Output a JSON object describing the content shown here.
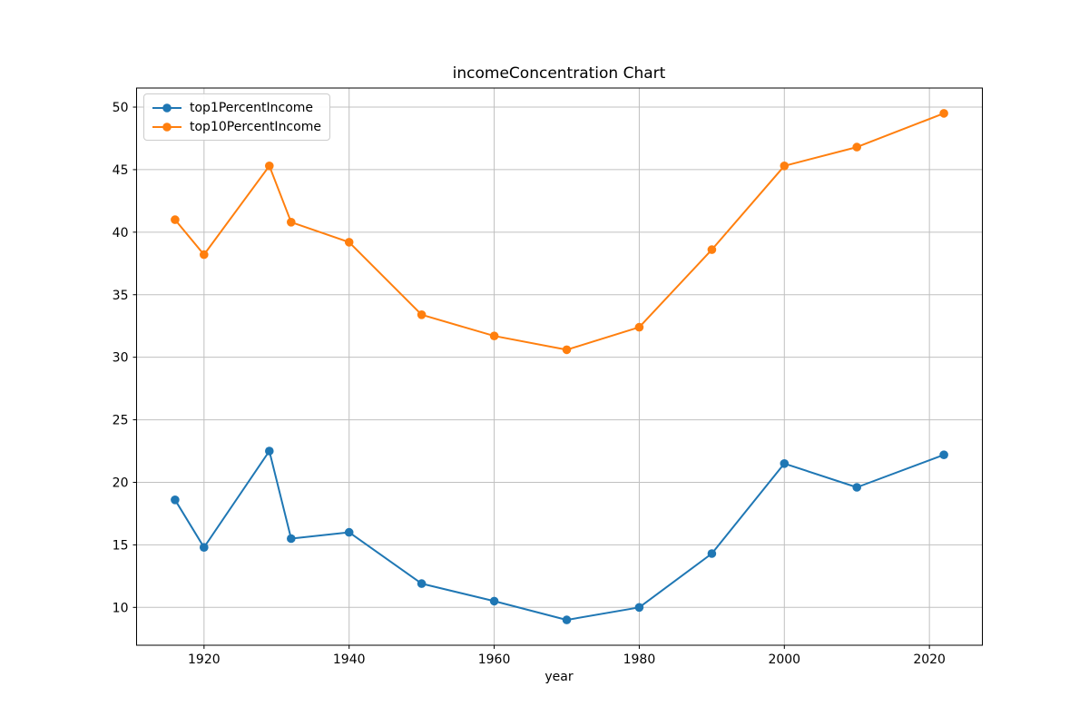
{
  "figure": {
    "title": "incomeConcentration Chart",
    "xlabel": "year",
    "background": "#ffffff"
  },
  "legend": {
    "position": "upper left",
    "items": [
      {
        "label": "top1PercentIncome",
        "color": "#1f77b4",
        "marker": "circle-icon"
      },
      {
        "label": "top10PercentIncome",
        "color": "#ff7f0e",
        "marker": "circle-icon"
      }
    ]
  },
  "chart_data": {
    "type": "line",
    "title": "incomeConcentration Chart",
    "xlabel": "year",
    "ylabel": "",
    "x": [
      1916,
      1920,
      1929,
      1932,
      1940,
      1950,
      1960,
      1970,
      1980,
      1990,
      2000,
      2010,
      2022
    ],
    "series": [
      {
        "name": "top1PercentIncome",
        "color": "#1f77b4",
        "values": [
          18.6,
          14.8,
          22.5,
          15.5,
          16.0,
          11.9,
          10.5,
          9.0,
          10.0,
          14.3,
          21.5,
          19.6,
          22.2
        ]
      },
      {
        "name": "top10PercentIncome",
        "color": "#ff7f0e",
        "values": [
          41.0,
          38.2,
          45.3,
          40.8,
          39.2,
          33.4,
          31.7,
          30.6,
          32.4,
          38.6,
          45.3,
          46.8,
          49.5
        ]
      }
    ],
    "xlim": [
      1910.7,
      2027.3
    ],
    "ylim": [
      6.975,
      51.525
    ],
    "xticks": [
      1920,
      1940,
      1960,
      1980,
      2000,
      2020
    ],
    "yticks": [
      10,
      15,
      20,
      25,
      30,
      35,
      40,
      45,
      50
    ],
    "grid": true,
    "grid_color": "#c0c0c0",
    "spine_color": "#000000",
    "marker_radius": 4.8,
    "line_width": 2,
    "legend_position": "upper left"
  }
}
